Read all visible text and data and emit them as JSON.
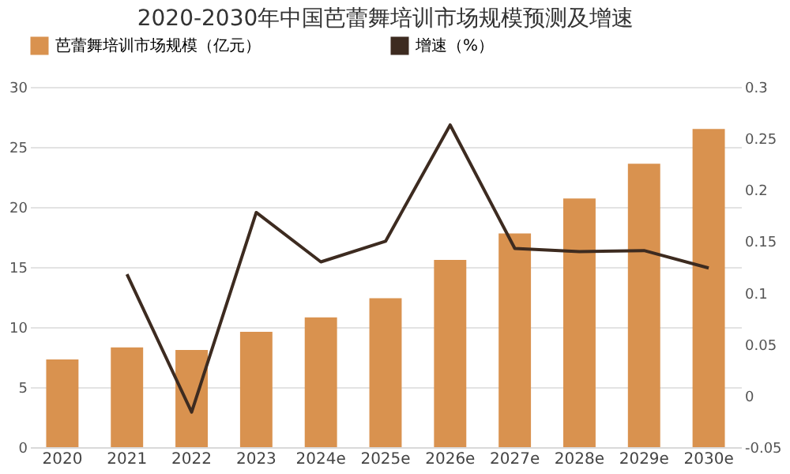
{
  "chart_data": {
    "type": "bar",
    "title": "2020-2030年中国芭蕾舞培训市场规模预测及增速",
    "categories": [
      "2020",
      "2021",
      "2022",
      "2023",
      "2024e",
      "2025e",
      "2026e",
      "2027e",
      "2028e",
      "2029e",
      "2030e"
    ],
    "series": [
      {
        "name": "芭蕾舞培训市场规模（亿元）",
        "color": "#d9924f",
        "values": [
          7.3,
          8.3,
          8.1,
          9.6,
          10.8,
          12.4,
          15.6,
          17.8,
          20.7,
          23.6,
          26.5
        ]
      },
      {
        "name": "增速（%）",
        "color": "#3d2b20",
        "type": "line",
        "axis": "y2",
        "values": [
          null,
          0.118,
          -0.016,
          0.178,
          0.13,
          0.15,
          0.263,
          0.143,
          0.14,
          0.141,
          0.124
        ]
      }
    ],
    "ylim": [
      0,
      30
    ],
    "yticks": [
      0,
      5,
      10,
      15,
      20,
      25,
      30
    ],
    "y2lim": [
      -0.05,
      0.3
    ],
    "y2ticks": [
      -0.05,
      0,
      0.05,
      0.1,
      0.15,
      0.2,
      0.25,
      0.3
    ],
    "grid": "y",
    "legend": "top",
    "marker": "none",
    "line_style": "solid"
  }
}
